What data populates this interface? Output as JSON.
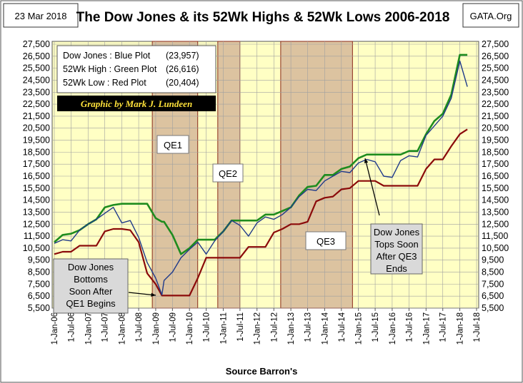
{
  "chart_data": {
    "type": "line",
    "title": "The Dow Jones & its 52Wk Highs & 52Wk Lows 2006-2018",
    "date_label": "23 Mar 2018",
    "source_label": "GATA.Org",
    "credit": "Graphic by Mark J. Lundeen",
    "xlabel": "Source Barron's",
    "x": [
      "2006-01-01",
      "2006-04-01",
      "2006-07-01",
      "2006-10-01",
      "2007-01-01",
      "2007-04-01",
      "2007-07-01",
      "2007-10-01",
      "2008-01-01",
      "2008-04-01",
      "2008-07-01",
      "2008-10-01",
      "2009-01-01",
      "2009-03-09",
      "2009-04-01",
      "2009-07-01",
      "2009-10-01",
      "2010-01-01",
      "2010-04-01",
      "2010-07-01",
      "2010-10-01",
      "2011-01-01",
      "2011-04-01",
      "2011-07-01",
      "2011-10-01",
      "2012-01-01",
      "2012-04-01",
      "2012-07-01",
      "2012-10-01",
      "2013-01-01",
      "2013-04-01",
      "2013-07-01",
      "2013-10-01",
      "2014-01-01",
      "2014-04-01",
      "2014-07-01",
      "2014-10-01",
      "2015-01-01",
      "2015-04-01",
      "2015-07-01",
      "2015-10-01",
      "2016-01-01",
      "2016-04-01",
      "2016-07-01",
      "2016-10-01",
      "2017-01-01",
      "2017-04-01",
      "2017-07-01",
      "2017-10-01",
      "2018-01-01",
      "2018-03-23"
    ],
    "series": [
      {
        "name": "Dow Jones : Blue Plot",
        "legend_label": "(23,957)",
        "color": "#1f3a8a",
        "values": [
          10900,
          11200,
          11100,
          12000,
          12500,
          12900,
          13400,
          13900,
          12600,
          12800,
          11400,
          9300,
          8000,
          6600,
          7800,
          8500,
          9700,
          10400,
          11000,
          10000,
          11100,
          11900,
          12800,
          12400,
          11500,
          12600,
          13100,
          12900,
          13300,
          13900,
          14800,
          15400,
          15300,
          16100,
          16500,
          16900,
          16800,
          17600,
          17900,
          17700,
          16500,
          16400,
          17800,
          18200,
          18100,
          19900,
          20700,
          21500,
          23000,
          26100,
          23957
        ]
      },
      {
        "name": "52Wk High : Green Plot",
        "legend_label": "(26,616)",
        "color": "#1e8c1e",
        "values": [
          11000,
          11600,
          11700,
          12000,
          12500,
          12900,
          13900,
          14100,
          14200,
          14200,
          14200,
          14200,
          13000,
          12700,
          12700,
          11600,
          10000,
          10500,
          11200,
          11200,
          11200,
          11900,
          12800,
          12800,
          12800,
          12800,
          13300,
          13300,
          13600,
          13900,
          14900,
          15600,
          15700,
          16600,
          16600,
          17100,
          17300,
          18000,
          18300,
          18300,
          18300,
          18300,
          18300,
          18600,
          18600,
          20000,
          21100,
          21700,
          23300,
          26616,
          26616
        ]
      },
      {
        "name": "52Wk Low : Red Plot",
        "legend_label": "(20,404)",
        "color": "#8b0a0a",
        "values": [
          10000,
          10200,
          10200,
          10700,
          10700,
          10700,
          11900,
          12100,
          12100,
          12000,
          11000,
          8400,
          7500,
          6547,
          6547,
          6547,
          6547,
          6547,
          8000,
          9700,
          9700,
          9700,
          9700,
          9700,
          10600,
          10600,
          10600,
          11800,
          12100,
          12500,
          12500,
          12700,
          14400,
          14700,
          14800,
          15400,
          15500,
          16100,
          16100,
          16100,
          15700,
          15700,
          15700,
          15700,
          15700,
          17100,
          17900,
          17900,
          19000,
          20000,
          20404
        ]
      }
    ],
    "xlim": [
      "2006-01-01",
      "2018-07-01"
    ],
    "xticks": [
      {
        "value": "2006-01-01",
        "label": "1-Jan-06"
      },
      {
        "value": "2006-07-01",
        "label": "1-Jul-06"
      },
      {
        "value": "2007-01-01",
        "label": "1-Jan-07"
      },
      {
        "value": "2007-07-01",
        "label": "1-Jul-07"
      },
      {
        "value": "2008-01-01",
        "label": "1-Jan-08"
      },
      {
        "value": "2008-07-01",
        "label": "1-Jul-08"
      },
      {
        "value": "2009-01-01",
        "label": "1-Jan-09"
      },
      {
        "value": "2009-07-01",
        "label": "1-Jul-09"
      },
      {
        "value": "2010-01-01",
        "label": "1-Jan-10"
      },
      {
        "value": "2010-07-01",
        "label": "1-Jul-10"
      },
      {
        "value": "2011-01-01",
        "label": "1-Jan-11"
      },
      {
        "value": "2011-07-01",
        "label": "1-Jul-11"
      },
      {
        "value": "2012-01-01",
        "label": "1-Jan-12"
      },
      {
        "value": "2012-07-01",
        "label": "1-Jul-12"
      },
      {
        "value": "2013-01-01",
        "label": "1-Jan-13"
      },
      {
        "value": "2013-07-01",
        "label": "1-Jul-13"
      },
      {
        "value": "2014-01-01",
        "label": "1-Jan-14"
      },
      {
        "value": "2014-07-01",
        "label": "1-Jul-14"
      },
      {
        "value": "2015-01-01",
        "label": "1-Jan-15"
      },
      {
        "value": "2015-07-01",
        "label": "1-Jul-15"
      },
      {
        "value": "2016-01-01",
        "label": "1-Jan-16"
      },
      {
        "value": "2016-07-01",
        "label": "1-Jul-16"
      },
      {
        "value": "2017-01-01",
        "label": "1-Jan-17"
      },
      {
        "value": "2017-07-01",
        "label": "1-Jul-17"
      },
      {
        "value": "2018-01-01",
        "label": "1-Jan-18"
      },
      {
        "value": "2018-07-01",
        "label": "1-Jul-18"
      }
    ],
    "ylim": [
      5500,
      27500
    ],
    "yticks": [
      {
        "value": 5500,
        "label": "5,500"
      },
      {
        "value": 6500,
        "label": "6,500"
      },
      {
        "value": 7500,
        "label": "7,500"
      },
      {
        "value": 8500,
        "label": "8,500"
      },
      {
        "value": 9500,
        "label": "9,500"
      },
      {
        "value": 10500,
        "label": "10,500"
      },
      {
        "value": 11500,
        "label": "11,500"
      },
      {
        "value": 12500,
        "label": "12,500"
      },
      {
        "value": 13500,
        "label": "13,500"
      },
      {
        "value": 14500,
        "label": "14,500"
      },
      {
        "value": 15500,
        "label": "15,500"
      },
      {
        "value": 16500,
        "label": "16,500"
      },
      {
        "value": 17500,
        "label": "17,500"
      },
      {
        "value": 18500,
        "label": "18,500"
      },
      {
        "value": 19500,
        "label": "19,500"
      },
      {
        "value": 20500,
        "label": "20,500"
      },
      {
        "value": 21500,
        "label": "21,500"
      },
      {
        "value": 22500,
        "label": "22,500"
      },
      {
        "value": 23500,
        "label": "23,500"
      },
      {
        "value": 24500,
        "label": "24,500"
      },
      {
        "value": 25500,
        "label": "25,500"
      },
      {
        "value": 26500,
        "label": "26,500"
      },
      {
        "value": 27500,
        "label": "27,500"
      }
    ],
    "grid": true,
    "shaded_regions": [
      {
        "label": "QE1",
        "start": "2008-11-25",
        "end": "2010-03-31"
      },
      {
        "label": "QE2",
        "start": "2010-11-03",
        "end": "2011-06-30"
      },
      {
        "label": "QE3",
        "start": "2012-09-13",
        "end": "2014-10-29"
      }
    ],
    "annotations": [
      {
        "lines": [
          "Dow Jones",
          "Bottoms",
          "Soon After",
          "QE1 Begins"
        ]
      },
      {
        "lines": [
          "Dow Jones",
          "Tops Soon",
          "After QE3",
          "Ends"
        ]
      }
    ]
  }
}
